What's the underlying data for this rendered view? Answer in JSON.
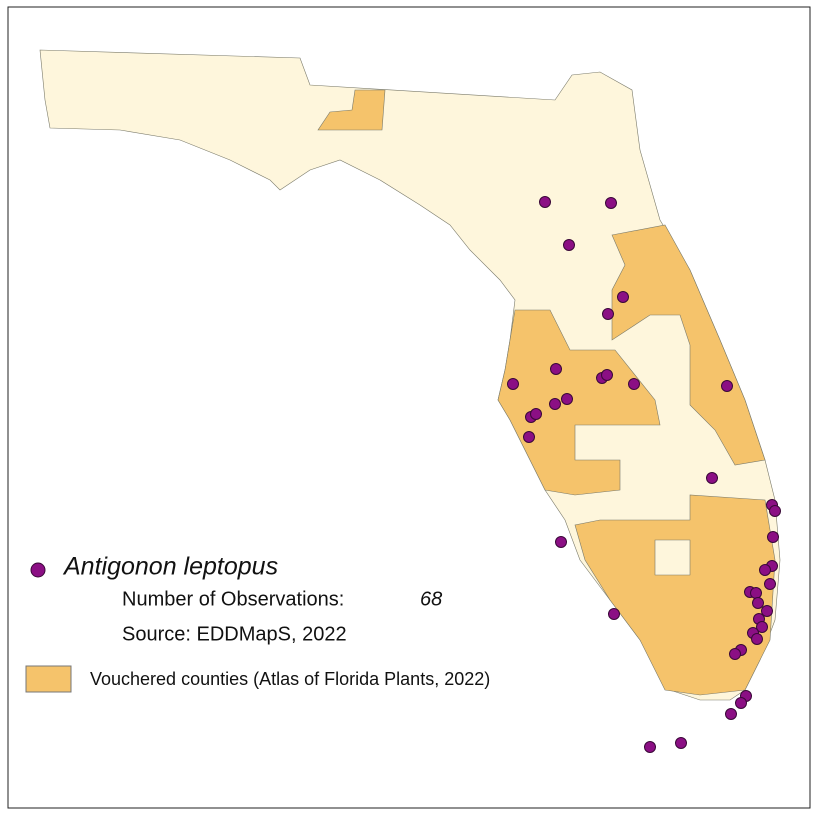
{
  "legend": {
    "species": "Antigonon leptopus",
    "observations_label": "Number of Observations:",
    "observations_count": "68",
    "source": "Source: EDDMapS, 2022",
    "vouchered": "Vouchered counties (Atlas of Florida Plants, 2022)"
  }
}
